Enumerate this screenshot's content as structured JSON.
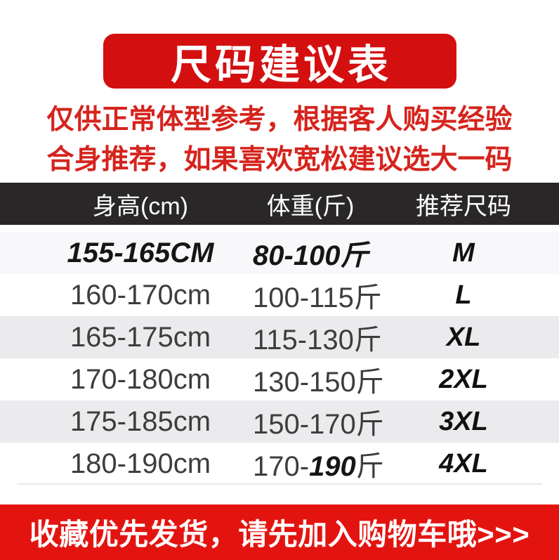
{
  "title_banner": {
    "text": "尺码建议表",
    "bg_color": "#d30f10",
    "text_color": "#ffffff"
  },
  "notice": {
    "lines": [
      "仅供正常体型参考，根据客人购买经验",
      "合身推荐，如果喜欢宽松建议选大一码"
    ],
    "text_color": "#d5241d"
  },
  "table": {
    "header": {
      "columns": [
        "身高(cm)",
        "体重(斤)",
        "推荐尺码"
      ],
      "bg_color": "#2a2729",
      "text_color": "#ffffff"
    },
    "stripe_colors": {
      "row_first": "#f8f7f9",
      "gray": "#ebeaec",
      "white": "#ffffff"
    },
    "rows": [
      {
        "height": "155-165CM",
        "weight": "80-100斤",
        "size": "M"
      },
      {
        "height": "160-170cm",
        "weight": "100-115斤",
        "size": "L"
      },
      {
        "height": "165-175cm",
        "weight": "115-130斤",
        "size": "XL"
      },
      {
        "height": "170-180cm",
        "weight": "130-150斤",
        "size": "2XL"
      },
      {
        "height": "175-185cm",
        "weight": "150-170斤",
        "size": "3XL"
      },
      {
        "height": "180-190cm",
        "weight_prefix": "170-",
        "weight_bold": "190",
        "weight_suffix": "斤",
        "size": "4XL"
      }
    ]
  },
  "footer_banner": {
    "text": "收藏优先发货，请先加入购物车哦>>>",
    "bg_color": "#e31410",
    "text_color": "#ffffff"
  }
}
